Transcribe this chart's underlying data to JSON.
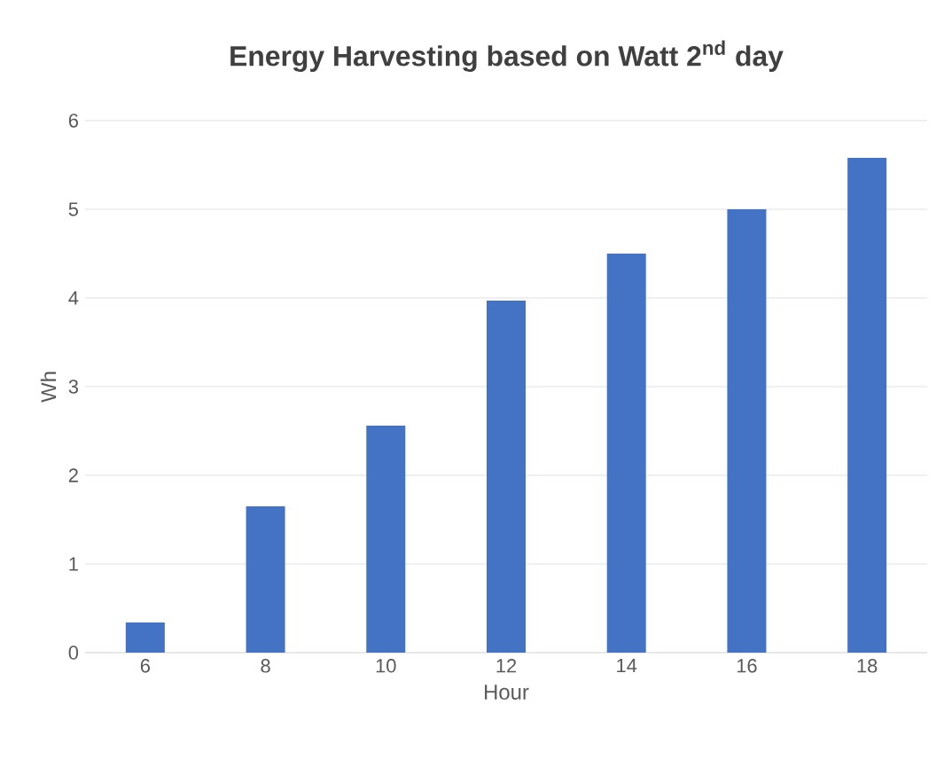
{
  "chart_data": {
    "type": "bar",
    "title": "Energy Harvesting based on Watt 2$^{nd}$ day",
    "xlabel": "Hour",
    "ylabel": "Wh",
    "categories": [
      "6",
      "8",
      "10",
      "12",
      "14",
      "16",
      "18"
    ],
    "values": [
      0.34,
      1.65,
      2.56,
      3.97,
      4.5,
      5.0,
      5.58
    ],
    "color": "#4472c4",
    "ylim": [
      0,
      6
    ],
    "yticks": [
      0,
      1,
      2,
      3,
      4,
      5,
      6
    ],
    "grid": "y"
  }
}
